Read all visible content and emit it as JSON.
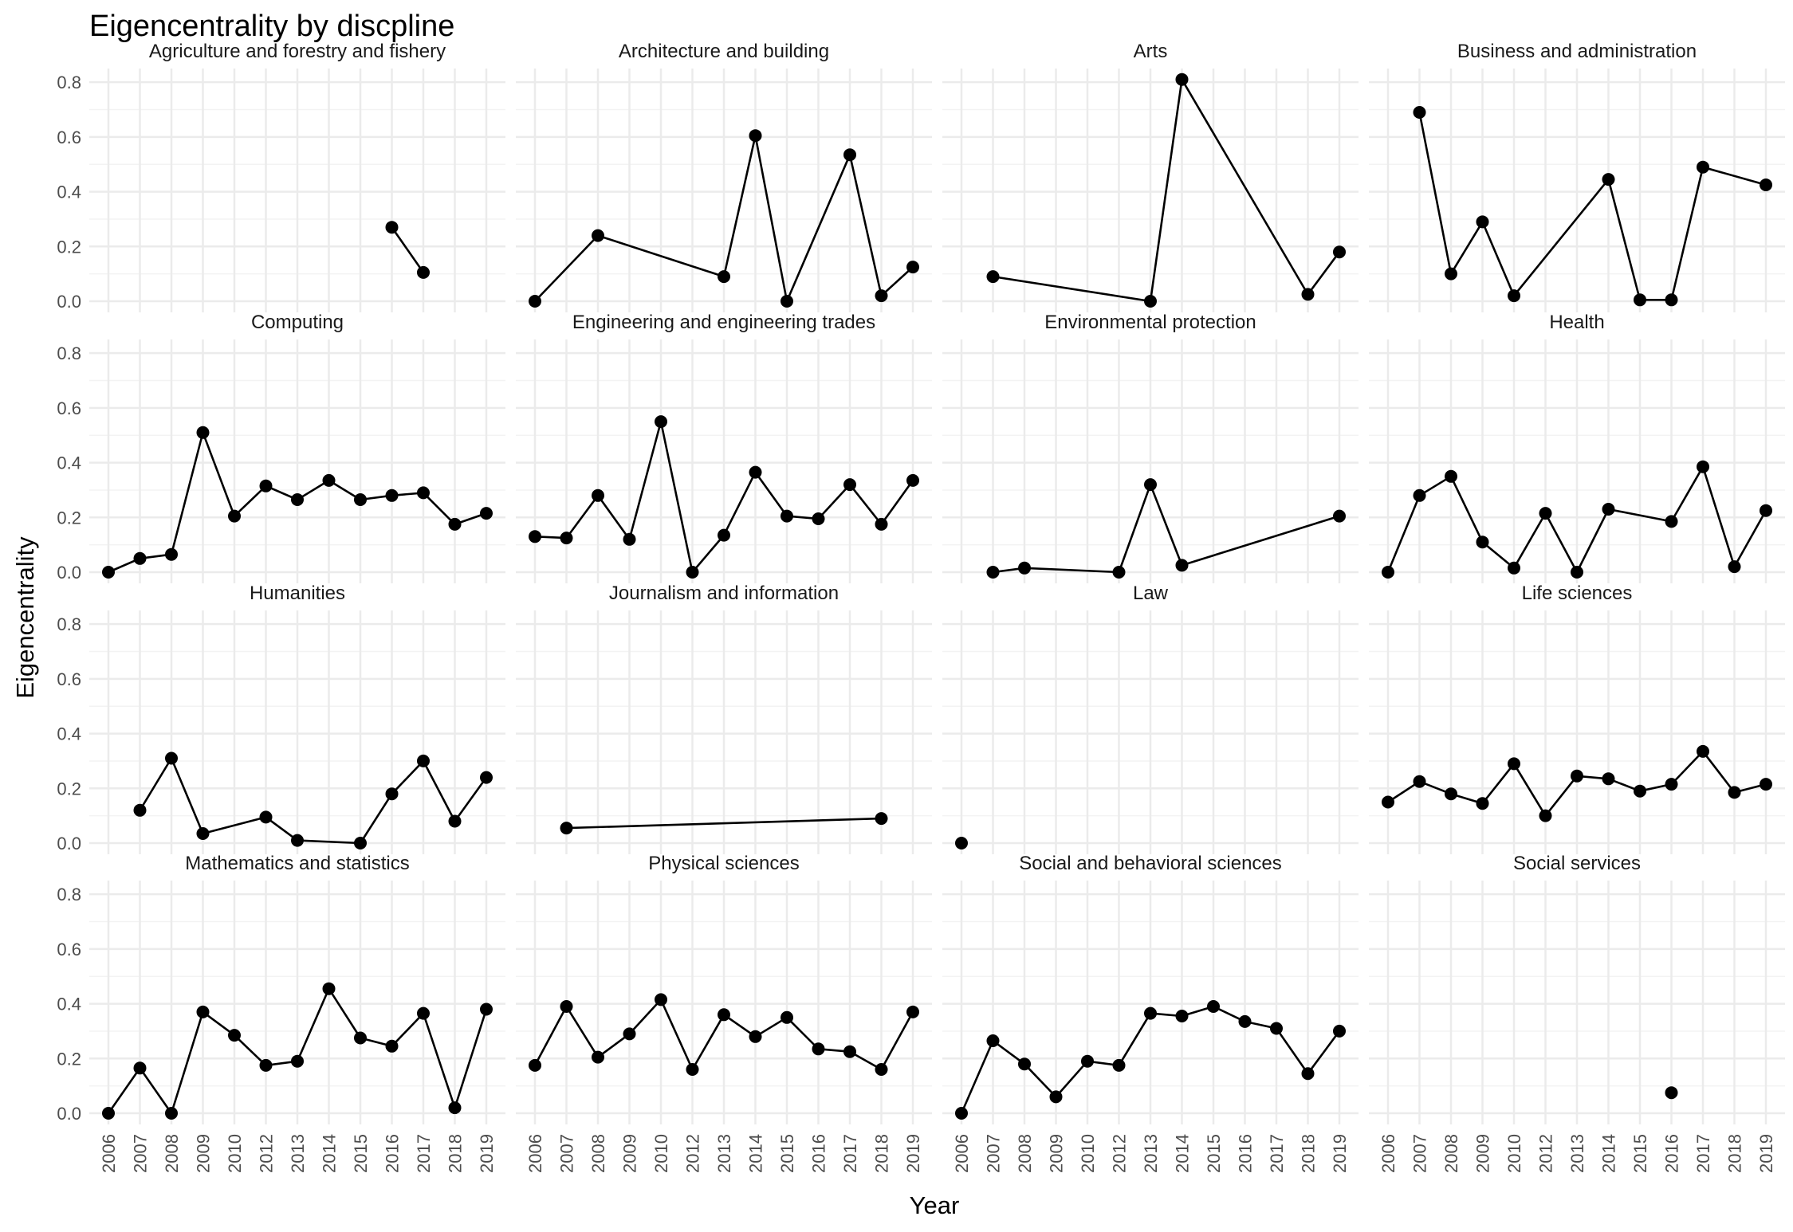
{
  "chart_data": {
    "type": "line",
    "title": "Eigencentrality by discpline",
    "xlabel": "Year",
    "ylabel": "Eigencentrality",
    "x_ticks": [
      "2006",
      "2007",
      "2008",
      "2009",
      "2010",
      "2012",
      "2013",
      "2014",
      "2015",
      "2016",
      "2017",
      "2018",
      "2019"
    ],
    "y_ticks": [
      "0.0",
      "0.2",
      "0.4",
      "0.6",
      "0.8"
    ],
    "ylim": [
      0,
      0.85
    ],
    "grid": true,
    "legend": "none",
    "colors": {
      "line": "#000000",
      "point": "#000000",
      "grid": "#ebebeb"
    },
    "panels": [
      {
        "name": "Agriculture and forestry and fishery",
        "points": [
          [
            "2016",
            0.27
          ],
          [
            "2017",
            0.105
          ]
        ]
      },
      {
        "name": "Architecture and building",
        "points": [
          [
            "2006",
            0.0
          ],
          [
            "2008",
            0.24
          ],
          [
            "2013",
            0.09
          ],
          [
            "2014",
            0.605
          ],
          [
            "2015",
            0.0
          ],
          [
            "2017",
            0.535
          ],
          [
            "2018",
            0.02
          ],
          [
            "2019",
            0.125
          ]
        ]
      },
      {
        "name": "Arts",
        "points": [
          [
            "2007",
            0.09
          ],
          [
            "2013",
            0.0
          ],
          [
            "2014",
            0.81
          ],
          [
            "2018",
            0.025
          ],
          [
            "2019",
            0.18
          ]
        ]
      },
      {
        "name": "Business and administration",
        "points": [
          [
            "2007",
            0.69
          ],
          [
            "2008",
            0.1
          ],
          [
            "2009",
            0.29
          ],
          [
            "2010",
            0.02
          ],
          [
            "2014",
            0.445
          ],
          [
            "2015",
            0.005
          ],
          [
            "2016",
            0.005
          ],
          [
            "2017",
            0.49
          ],
          [
            "2019",
            0.425
          ]
        ]
      },
      {
        "name": "Computing",
        "points": [
          [
            "2006",
            0.0
          ],
          [
            "2007",
            0.05
          ],
          [
            "2008",
            0.065
          ],
          [
            "2009",
            0.51
          ],
          [
            "2010",
            0.205
          ],
          [
            "2012",
            0.315
          ],
          [
            "2013",
            0.265
          ],
          [
            "2014",
            0.335
          ],
          [
            "2015",
            0.265
          ],
          [
            "2016",
            0.28
          ],
          [
            "2017",
            0.29
          ],
          [
            "2018",
            0.175
          ],
          [
            "2019",
            0.215
          ]
        ]
      },
      {
        "name": "Engineering and engineering trades",
        "points": [
          [
            "2006",
            0.13
          ],
          [
            "2007",
            0.125
          ],
          [
            "2008",
            0.28
          ],
          [
            "2009",
            0.12
          ],
          [
            "2010",
            0.55
          ],
          [
            "2012",
            0.0
          ],
          [
            "2013",
            0.135
          ],
          [
            "2014",
            0.365
          ],
          [
            "2015",
            0.205
          ],
          [
            "2016",
            0.195
          ],
          [
            "2017",
            0.32
          ],
          [
            "2018",
            0.175
          ],
          [
            "2019",
            0.335
          ]
        ]
      },
      {
        "name": "Environmental protection",
        "points": [
          [
            "2007",
            0.0
          ],
          [
            "2008",
            0.015
          ],
          [
            "2012",
            0.0
          ],
          [
            "2013",
            0.32
          ],
          [
            "2014",
            0.025
          ],
          [
            "2019",
            0.205
          ]
        ]
      },
      {
        "name": "Health",
        "points": [
          [
            "2006",
            0.0
          ],
          [
            "2007",
            0.28
          ],
          [
            "2008",
            0.35
          ],
          [
            "2009",
            0.11
          ],
          [
            "2010",
            0.015
          ],
          [
            "2012",
            0.215
          ],
          [
            "2013",
            0.0
          ],
          [
            "2014",
            0.23
          ],
          [
            "2016",
            0.185
          ],
          [
            "2017",
            0.385
          ],
          [
            "2018",
            0.02
          ],
          [
            "2019",
            0.225
          ]
        ]
      },
      {
        "name": "Humanities",
        "points": [
          [
            "2007",
            0.12
          ],
          [
            "2008",
            0.31
          ],
          [
            "2009",
            0.035
          ],
          [
            "2012",
            0.095
          ],
          [
            "2013",
            0.01
          ],
          [
            "2015",
            0.0
          ],
          [
            "2016",
            0.18
          ],
          [
            "2017",
            0.3
          ],
          [
            "2018",
            0.08
          ],
          [
            "2019",
            0.24
          ]
        ]
      },
      {
        "name": "Journalism and information",
        "points": [
          [
            "2007",
            0.055
          ],
          [
            "2018",
            0.09
          ]
        ]
      },
      {
        "name": "Law",
        "points": [
          [
            "2006",
            0.0
          ]
        ]
      },
      {
        "name": "Life sciences",
        "points": [
          [
            "2006",
            0.15
          ],
          [
            "2007",
            0.225
          ],
          [
            "2008",
            0.18
          ],
          [
            "2009",
            0.145
          ],
          [
            "2010",
            0.29
          ],
          [
            "2012",
            0.1
          ],
          [
            "2013",
            0.245
          ],
          [
            "2014",
            0.235
          ],
          [
            "2015",
            0.19
          ],
          [
            "2016",
            0.215
          ],
          [
            "2017",
            0.335
          ],
          [
            "2018",
            0.185
          ],
          [
            "2019",
            0.215
          ]
        ]
      },
      {
        "name": "Mathematics and statistics",
        "points": [
          [
            "2006",
            0.0
          ],
          [
            "2007",
            0.165
          ],
          [
            "2008",
            0.0
          ],
          [
            "2009",
            0.37
          ],
          [
            "2010",
            0.285
          ],
          [
            "2012",
            0.175
          ],
          [
            "2013",
            0.19
          ],
          [
            "2014",
            0.455
          ],
          [
            "2015",
            0.275
          ],
          [
            "2016",
            0.245
          ],
          [
            "2017",
            0.365
          ],
          [
            "2018",
            0.02
          ],
          [
            "2019",
            0.38
          ]
        ]
      },
      {
        "name": "Physical sciences",
        "points": [
          [
            "2006",
            0.175
          ],
          [
            "2007",
            0.39
          ],
          [
            "2008",
            0.205
          ],
          [
            "2009",
            0.29
          ],
          [
            "2010",
            0.415
          ],
          [
            "2012",
            0.16
          ],
          [
            "2013",
            0.36
          ],
          [
            "2014",
            0.28
          ],
          [
            "2015",
            0.35
          ],
          [
            "2016",
            0.235
          ],
          [
            "2017",
            0.225
          ],
          [
            "2018",
            0.16
          ],
          [
            "2019",
            0.37
          ]
        ]
      },
      {
        "name": "Social and behavioral sciences",
        "points": [
          [
            "2006",
            0.0
          ],
          [
            "2007",
            0.265
          ],
          [
            "2008",
            0.18
          ],
          [
            "2009",
            0.06
          ],
          [
            "2010",
            0.19
          ],
          [
            "2012",
            0.175
          ],
          [
            "2013",
            0.365
          ],
          [
            "2014",
            0.355
          ],
          [
            "2015",
            0.39
          ],
          [
            "2016",
            0.335
          ],
          [
            "2017",
            0.31
          ],
          [
            "2018",
            0.145
          ],
          [
            "2019",
            0.3
          ]
        ]
      },
      {
        "name": "Social services",
        "points": [
          [
            "2016",
            0.075
          ]
        ]
      }
    ]
  }
}
